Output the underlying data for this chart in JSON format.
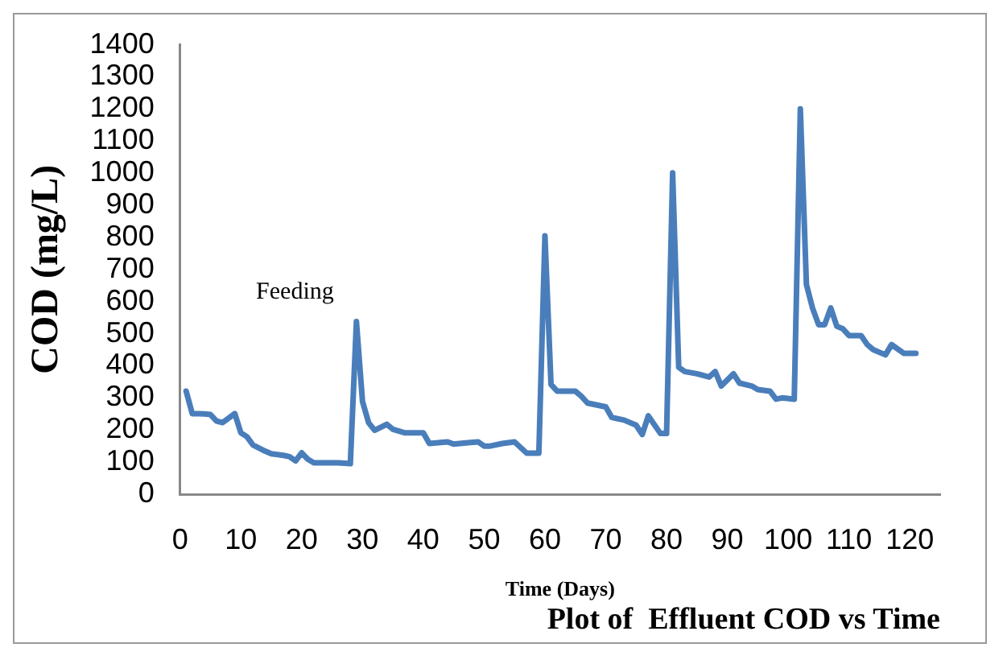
{
  "chart_data": {
    "type": "line",
    "title": "Plot of  Effluent COD vs Time",
    "xlabel": "Time (Days)",
    "ylabel": "COD (mg/L)",
    "annotations": [
      "Feeding"
    ],
    "x": [
      1,
      2,
      3,
      4,
      5,
      6,
      7,
      9,
      10,
      11,
      12,
      14,
      15,
      17,
      18,
      19,
      20,
      21,
      22,
      25,
      26,
      28,
      29,
      30,
      31,
      32,
      34,
      35,
      37,
      39,
      40,
      41,
      44,
      45,
      47,
      49,
      50,
      51,
      53,
      55,
      57,
      59,
      60,
      61,
      62,
      65,
      66,
      67,
      70,
      71,
      73,
      75,
      76,
      77,
      79,
      80,
      81,
      82,
      83,
      85,
      87,
      88,
      89,
      91,
      92,
      94,
      95,
      97,
      98,
      99,
      101,
      102,
      103,
      104,
      105,
      106,
      107,
      108,
      109,
      110,
      112,
      113,
      114,
      116,
      117,
      119,
      121
    ],
    "series": [
      {
        "color": "#4a7ebb",
        "values": [
          321,
          251,
          251,
          250,
          248,
          228,
          223,
          251,
          191,
          179,
          153,
          134,
          126,
          121,
          117,
          104,
          129,
          109,
          98,
          98,
          98,
          95,
          538,
          289,
          223,
          199,
          218,
          202,
          191,
          191,
          191,
          158,
          163,
          156,
          160,
          163,
          150,
          150,
          158,
          163,
          128,
          128,
          805,
          342,
          321,
          321,
          305,
          284,
          272,
          239,
          231,
          215,
          186,
          244,
          189,
          189,
          1001,
          395,
          382,
          375,
          365,
          382,
          337,
          375,
          346,
          337,
          326,
          321,
          296,
          300,
          296,
          1200,
          653,
          580,
          528,
          528,
          580,
          523,
          515,
          494,
          494,
          466,
          450,
          434,
          466,
          439,
          439
        ]
      }
    ],
    "xlim": [
      0,
      125
    ],
    "xticks": [
      0,
      10,
      20,
      30,
      40,
      50,
      60,
      70,
      80,
      90,
      100,
      110,
      120
    ],
    "ylim": [
      0,
      1400
    ],
    "yticks": [
      0,
      100,
      200,
      300,
      400,
      500,
      600,
      700,
      800,
      900,
      1000,
      1100,
      1200,
      1300,
      1400
    ],
    "grid": false,
    "legend": false,
    "marker": "none",
    "line_style": "solid"
  }
}
